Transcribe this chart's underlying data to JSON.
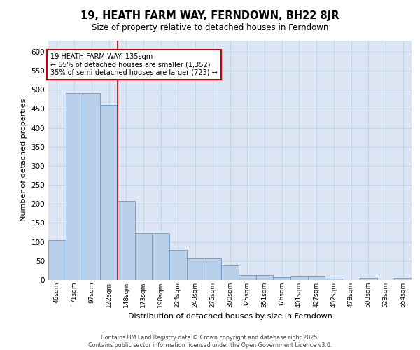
{
  "title": "19, HEATH FARM WAY, FERNDOWN, BH22 8JR",
  "subtitle": "Size of property relative to detached houses in Ferndown",
  "xlabel": "Distribution of detached houses by size in Ferndown",
  "ylabel": "Number of detached properties",
  "categories": [
    "46sqm",
    "71sqm",
    "97sqm",
    "122sqm",
    "148sqm",
    "173sqm",
    "198sqm",
    "224sqm",
    "249sqm",
    "275sqm",
    "300sqm",
    "325sqm",
    "351sqm",
    "376sqm",
    "401sqm",
    "427sqm",
    "452sqm",
    "478sqm",
    "503sqm",
    "528sqm",
    "554sqm"
  ],
  "values": [
    105,
    492,
    492,
    460,
    207,
    123,
    123,
    80,
    57,
    57,
    38,
    13,
    13,
    8,
    10,
    10,
    4,
    0,
    5,
    0,
    6
  ],
  "bar_color": "#b8d0ea",
  "bar_edge_color": "#6699cc",
  "grid_color": "#c8d4e8",
  "background_color": "#dce6f5",
  "annotation_box_text": "19 HEATH FARM WAY: 135sqm\n← 65% of detached houses are smaller (1,352)\n35% of semi-detached houses are larger (723) →",
  "vline_color": "#cc0000",
  "vline_position": 3.5,
  "footer": "Contains HM Land Registry data © Crown copyright and database right 2025.\nContains public sector information licensed under the Open Government Licence v3.0.",
  "ylim": [
    0,
    630
  ],
  "yticks": [
    0,
    50,
    100,
    150,
    200,
    250,
    300,
    350,
    400,
    450,
    500,
    550,
    600
  ]
}
